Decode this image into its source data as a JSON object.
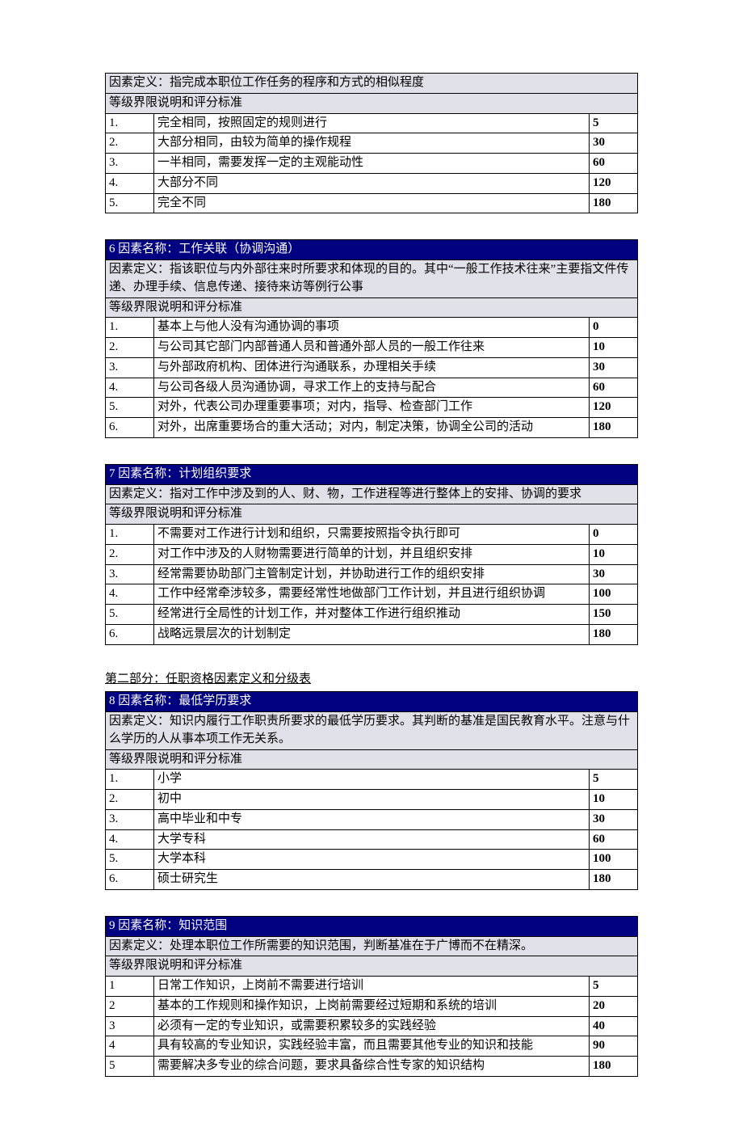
{
  "colors": {
    "header_bg": "#000080",
    "header_text": "#ffffff",
    "subheader_bg": "#e0e0e8",
    "border": "#000000",
    "page_bg": "#ffffff"
  },
  "typography": {
    "font_family": "SimSun",
    "base_fontsize": 15
  },
  "layout": {
    "num_col_width": 60,
    "score_col_width": 60,
    "table_spacing": 32
  },
  "criteria_label": "等级界限说明和评分标准",
  "section2_heading": "第二部分：任职资格因素定义和分级表",
  "factors": [
    {
      "show_title": false,
      "title": "",
      "definition": "因素定义：指完成本职位工作任务的程序和方式的相似程度",
      "rows": [
        {
          "n": "1.",
          "desc": "完全相同，按照固定的规则进行",
          "score": "5"
        },
        {
          "n": "2.",
          "desc": "大部分相同，由较为简单的操作规程",
          "score": "30"
        },
        {
          "n": "3.",
          "desc": "一半相同，需要发挥一定的主观能动性",
          "score": "60"
        },
        {
          "n": "4.",
          "desc": "大部分不同",
          "score": "120"
        },
        {
          "n": "5.",
          "desc": "完全不同",
          "score": "180"
        }
      ]
    },
    {
      "show_title": true,
      "title": "6 因素名称：工作关联（协调沟通）",
      "definition": "因素定义：指该职位与内外部往来时所要求和体现的目的。其中“一般工作技术往来”主要指文件传递、办理手续、信息传递、接待来访等例行公事",
      "rows": [
        {
          "n": "1.",
          "desc": "基本上与他人没有沟通协调的事项",
          "score": "0"
        },
        {
          "n": "2.",
          "desc": "与公司其它部门内部普通人员和普通外部人员的一般工作往来",
          "score": "10"
        },
        {
          "n": "3.",
          "desc": "与外部政府机构、团体进行沟通联系，办理相关手续",
          "score": "30"
        },
        {
          "n": "4.",
          "desc": "与公司各级人员沟通协调，寻求工作上的支持与配合",
          "score": "60"
        },
        {
          "n": "5.",
          "desc": "对外，代表公司办理重要事项；对内，指导、检查部门工作",
          "score": "120"
        },
        {
          "n": "6.",
          "desc": "对外，出席重要场合的重大活动；对内，制定决策，协调全公司的活动",
          "score": "180"
        }
      ]
    },
    {
      "show_title": true,
      "title": "7 因素名称：计划组织要求",
      "definition": "因素定义：指对工作中涉及到的人、财、物，工作进程等进行整体上的安排、协调的要求",
      "rows": [
        {
          "n": "1.",
          "desc": "不需要对工作进行计划和组织，只需要按照指令执行即可",
          "score": "0"
        },
        {
          "n": "2.",
          "desc": "对工作中涉及的人财物需要进行简单的计划，并且组织安排",
          "score": "10"
        },
        {
          "n": "3.",
          "desc": "经常需要协助部门主管制定计划，并协助进行工作的组织安排",
          "score": "30"
        },
        {
          "n": "4.",
          "desc": "工作中经常牵涉较多，需要经常性地做部门工作计划，并且进行组织协调",
          "score": "100"
        },
        {
          "n": "5.",
          "desc": "经常进行全局性的计划工作，并对整体工作进行组织推动",
          "score": "150"
        },
        {
          "n": "6.",
          "desc": "战略远景层次的计划制定",
          "score": "180"
        }
      ]
    },
    {
      "show_title": true,
      "section_before": true,
      "title": "8 因素名称：最低学历要求",
      "definition": "因素定义：知识内履行工作职责所要求的最低学历要求。其判断的基准是国民教育水平。注意与什么学历的人从事本项工作无关系。",
      "rows": [
        {
          "n": "1.",
          "desc": "小学",
          "score": "5"
        },
        {
          "n": "2.",
          "desc": "初中",
          "score": "10"
        },
        {
          "n": "3.",
          "desc": "高中毕业和中专",
          "score": "30"
        },
        {
          "n": "4.",
          "desc": "大学专科",
          "score": "60"
        },
        {
          "n": "5.",
          "desc": "大学本科",
          "score": "100"
        },
        {
          "n": "6.",
          "desc": "硕士研究生",
          "score": "180"
        }
      ]
    },
    {
      "show_title": true,
      "title": "9 因素名称：知识范围",
      "definition": "因素定义：处理本职位工作所需要的知识范围，判断基准在于广博而不在精深。",
      "rows": [
        {
          "n": "1",
          "desc": "日常工作知识，上岗前不需要进行培训",
          "score": "5"
        },
        {
          "n": "2",
          "desc": "基本的工作规则和操作知识，上岗前需要经过短期和系统的培训",
          "score": "20"
        },
        {
          "n": "3",
          "desc": "必须有一定的专业知识，或需要积累较多的实践经验",
          "score": "40"
        },
        {
          "n": "4",
          "desc": "具有较高的专业知识，实践经验丰富，而且需要其他专业的知识和技能",
          "score": "90"
        },
        {
          "n": "5",
          "desc": "需要解决多专业的综合问题，要求具备综合性专家的知识结构",
          "score": "180"
        }
      ]
    }
  ]
}
